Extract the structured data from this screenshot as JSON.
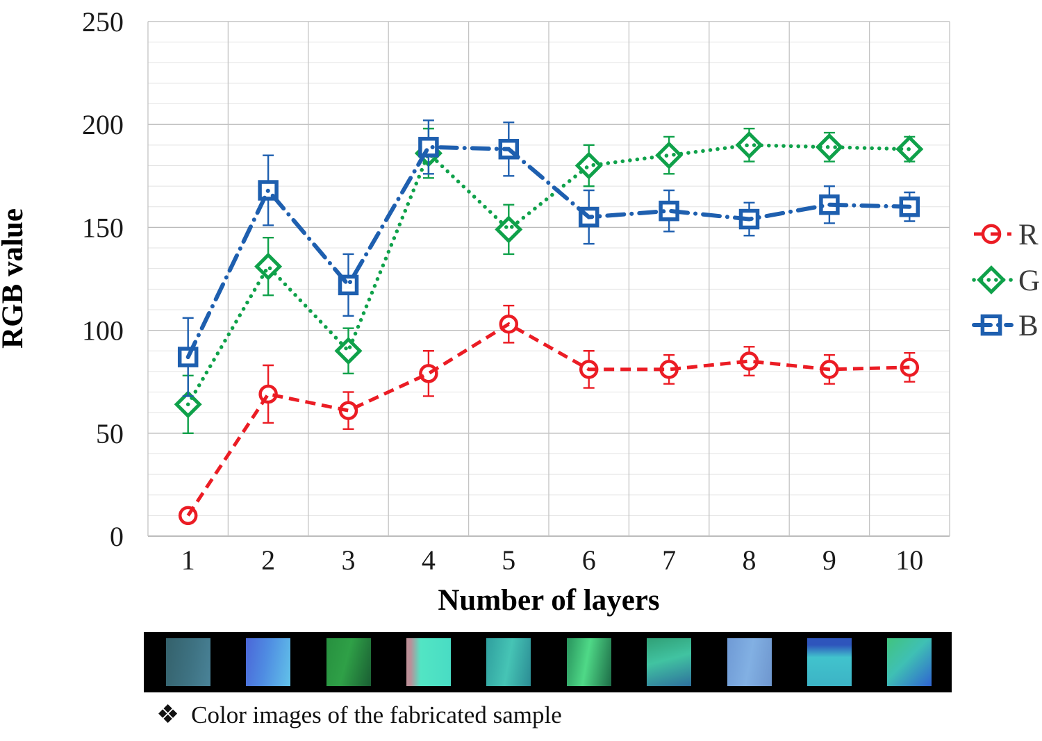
{
  "figure": {
    "caption_bullet": "❖",
    "caption": "Color images of the fabricated sample"
  },
  "chart_data": {
    "type": "line",
    "x": [
      1,
      2,
      3,
      4,
      5,
      6,
      7,
      8,
      9,
      10
    ],
    "xlabel": "Number of layers",
    "ylabel": "RGB value",
    "ylim": [
      0,
      250
    ],
    "y_major_ticks": [
      0,
      50,
      100,
      150,
      200,
      250
    ],
    "y_minor_step": 10,
    "grid": true,
    "legend_position": "right",
    "series": [
      {
        "name": "R",
        "color": "#EB1C24",
        "line_style": "dashed",
        "marker": "circle",
        "values": [
          10,
          69,
          61,
          79,
          103,
          81,
          81,
          85,
          81,
          82
        ],
        "errors": [
          3,
          14,
          9,
          11,
          9,
          9,
          7,
          7,
          7,
          7
        ]
      },
      {
        "name": "G",
        "color": "#0FA14A",
        "line_style": "dotted",
        "marker": "diamond",
        "values": [
          64,
          131,
          90,
          186,
          149,
          180,
          185,
          190,
          189,
          188
        ],
        "errors": [
          14,
          14,
          11,
          12,
          12,
          10,
          9,
          8,
          7,
          6
        ]
      },
      {
        "name": "B",
        "color": "#1E5FAF",
        "line_style": "dashdot",
        "marker": "square",
        "values": [
          87,
          168,
          122,
          189,
          188,
          155,
          158,
          154,
          161,
          160
        ],
        "errors": [
          19,
          17,
          15,
          13,
          13,
          13,
          10,
          8,
          9,
          7
        ]
      }
    ]
  },
  "style_colors": {
    "minor_grid": "#E3E3E3",
    "major_grid": "#B9B9B9",
    "vertical_grid": "#C4C4C4",
    "axis_line": "#A6A6A6",
    "tick_text": "#1a1a1a",
    "legend_text": "#3a3a3a",
    "strip_bg": "#000000"
  },
  "samples": {
    "items": [
      {
        "bg": "linear-gradient(100deg,#34616b 0%,#3e7282 55%,#4a8398 100%)"
      },
      {
        "bg": "linear-gradient(100deg,#4b66d8 0%,#4f8ce2 45%,#62c2e9 100%)"
      },
      {
        "bg": "linear-gradient(105deg,#27903f 0%,#2fa047 45%,#1a5e33 100%)"
      },
      {
        "bg": "linear-gradient(90deg,#bd9097 0%,#b98f99 10%,#52e5c4 32%,#49dcc4 100%)"
      },
      {
        "bg": "linear-gradient(100deg,#2f9f9e 0%,#46c4b5 50%,#2b8c94 100%)"
      },
      {
        "bg": "linear-gradient(100deg,#28935d 0%,#4fd987 45%,#1d6c47 100%)"
      },
      {
        "bg": "linear-gradient(165deg,#30a076 0%,#41c3a1 45%,#2e6f9d 100%)"
      },
      {
        "bg": "linear-gradient(100deg,#6f9ad5 0%,#82b0e3 50%,#6e96ce 100%)"
      },
      {
        "bg": "linear-gradient(180deg,#2e55bc 0%,#2e55bc 14%,#41c3cd 40%,#3cb3c5 100%)"
      },
      {
        "bg": "linear-gradient(135deg,#41c47e 0%,#3fc0b4 45%,#2f63d1 100%)"
      }
    ]
  }
}
